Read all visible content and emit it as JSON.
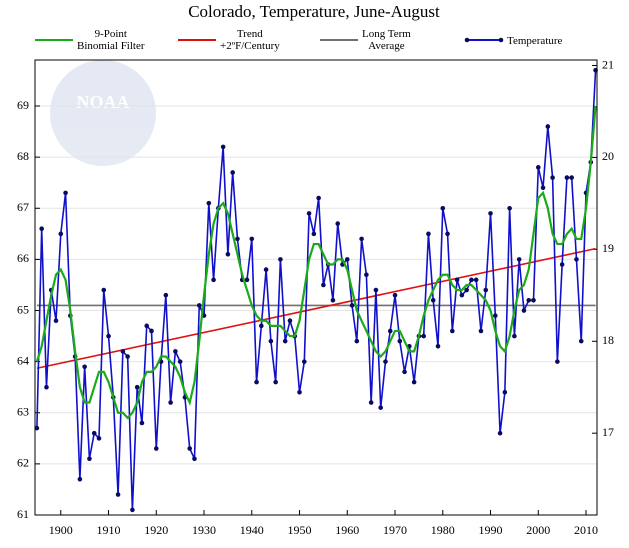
{
  "chart_data": {
    "type": "line",
    "title": "Colorado, Temperature, June-August",
    "watermark": "NOAA",
    "x": [
      1895,
      1896,
      1897,
      1898,
      1899,
      1900,
      1901,
      1902,
      1903,
      1904,
      1905,
      1906,
      1907,
      1908,
      1909,
      1910,
      1911,
      1912,
      1913,
      1914,
      1915,
      1916,
      1917,
      1918,
      1919,
      1920,
      1921,
      1922,
      1923,
      1924,
      1925,
      1926,
      1927,
      1928,
      1929,
      1930,
      1931,
      1932,
      1933,
      1934,
      1935,
      1936,
      1937,
      1938,
      1939,
      1940,
      1941,
      1942,
      1943,
      1944,
      1945,
      1946,
      1947,
      1948,
      1949,
      1950,
      1951,
      1952,
      1953,
      1954,
      1955,
      1956,
      1957,
      1958,
      1959,
      1960,
      1961,
      1962,
      1963,
      1964,
      1965,
      1966,
      1967,
      1968,
      1969,
      1970,
      1971,
      1972,
      1973,
      1974,
      1975,
      1976,
      1977,
      1978,
      1979,
      1980,
      1981,
      1982,
      1983,
      1984,
      1985,
      1986,
      1987,
      1988,
      1989,
      1990,
      1991,
      1992,
      1993,
      1994,
      1995,
      1996,
      1997,
      1998,
      1999,
      2000,
      2001,
      2002,
      2003,
      2004,
      2005,
      2006,
      2007,
      2008,
      2009,
      2010,
      2011,
      2012
    ],
    "series": [
      {
        "name": "9-Point\nBinomial Filter",
        "color": "#1aaa1a",
        "values": [
          64.0,
          64.3,
          64.8,
          65.3,
          65.7,
          65.8,
          65.6,
          65.0,
          64.2,
          63.5,
          63.2,
          63.2,
          63.5,
          63.8,
          63.8,
          63.6,
          63.3,
          63.0,
          63.0,
          62.9,
          63.0,
          63.2,
          63.6,
          63.8,
          63.8,
          63.9,
          64.1,
          64.1,
          64.0,
          63.9,
          63.7,
          63.4,
          63.2,
          63.6,
          64.4,
          65.3,
          66.1,
          66.7,
          67.0,
          67.1,
          66.9,
          66.5,
          66.1,
          65.7,
          65.4,
          65.1,
          64.9,
          64.8,
          64.8,
          64.7,
          64.7,
          64.7,
          64.6,
          64.5,
          64.5,
          64.8,
          65.4,
          66.0,
          66.3,
          66.3,
          66.1,
          65.9,
          65.9,
          66.0,
          66.0,
          65.8,
          65.4,
          65.0,
          64.8,
          64.6,
          64.4,
          64.2,
          64.1,
          64.2,
          64.4,
          64.6,
          64.6,
          64.4,
          64.2,
          64.2,
          64.5,
          64.9,
          65.2,
          65.4,
          65.6,
          65.7,
          65.7,
          65.5,
          65.4,
          65.4,
          65.5,
          65.5,
          65.4,
          65.3,
          65.2,
          65.0,
          64.6,
          64.3,
          64.2,
          64.5,
          65.0,
          65.4,
          65.5,
          65.8,
          66.5,
          67.2,
          67.3,
          67.0,
          66.5,
          66.3,
          66.3,
          66.5,
          66.6,
          66.4,
          66.4,
          67.0,
          67.9,
          69.0
        ]
      },
      {
        "name": "Trend\n+2ºF/Century",
        "color": "#e01010",
        "x": [
          1895,
          2012
        ],
        "values": [
          63.87,
          66.21
        ]
      },
      {
        "name": "Long Term\nAverage",
        "color": "#707070",
        "x": [
          1895,
          2012
        ],
        "values": [
          65.1,
          65.1
        ]
      },
      {
        "name": "Temperature",
        "color": "#1010cc",
        "marker_color": "#0a0a60",
        "values": [
          62.7,
          66.6,
          63.5,
          65.4,
          64.8,
          66.5,
          67.3,
          64.9,
          64.1,
          61.7,
          63.9,
          62.1,
          62.6,
          62.5,
          65.4,
          64.5,
          63.3,
          61.4,
          64.2,
          64.1,
          61.1,
          63.5,
          62.8,
          64.7,
          64.6,
          62.3,
          64.0,
          65.3,
          63.2,
          64.2,
          64.0,
          63.3,
          62.3,
          62.1,
          65.1,
          64.9,
          67.1,
          65.6,
          67.0,
          68.2,
          66.1,
          67.7,
          66.4,
          65.6,
          65.6,
          66.4,
          63.6,
          64.7,
          65.8,
          64.4,
          63.6,
          66.0,
          64.4,
          64.8,
          64.5,
          63.4,
          64.0,
          66.9,
          66.5,
          67.2,
          65.5,
          65.9,
          65.2,
          66.7,
          65.9,
          66.0,
          65.1,
          64.4,
          66.4,
          65.7,
          63.2,
          65.4,
          63.1,
          64.0,
          64.6,
          65.3,
          64.4,
          63.8,
          64.3,
          63.6,
          64.5,
          64.5,
          66.5,
          65.2,
          64.3,
          67.0,
          66.5,
          64.6,
          65.6,
          65.3,
          65.4,
          65.6,
          65.6,
          64.6,
          65.4,
          66.9,
          64.9,
          62.6,
          63.4,
          67.0,
          64.5,
          66.0,
          65.0,
          65.2,
          65.2,
          67.8,
          67.4,
          68.6,
          67.6,
          64.0,
          65.9,
          67.6,
          67.6,
          66.0,
          64.4,
          67.3,
          67.9,
          69.7
        ]
      }
    ],
    "xlim": [
      1894.6,
      2012.3
    ],
    "xticks": [
      1900,
      1910,
      1920,
      1930,
      1940,
      1950,
      1960,
      1970,
      1980,
      1990,
      2000,
      2010
    ],
    "ylim": [
      61,
      69.9
    ],
    "yticks": [
      61,
      62,
      63,
      64,
      65,
      66,
      67,
      68,
      69
    ],
    "y2lim": [
      16.11,
      21.06
    ],
    "y2ticks": [
      17,
      18,
      19,
      20,
      21
    ],
    "grid": true
  }
}
